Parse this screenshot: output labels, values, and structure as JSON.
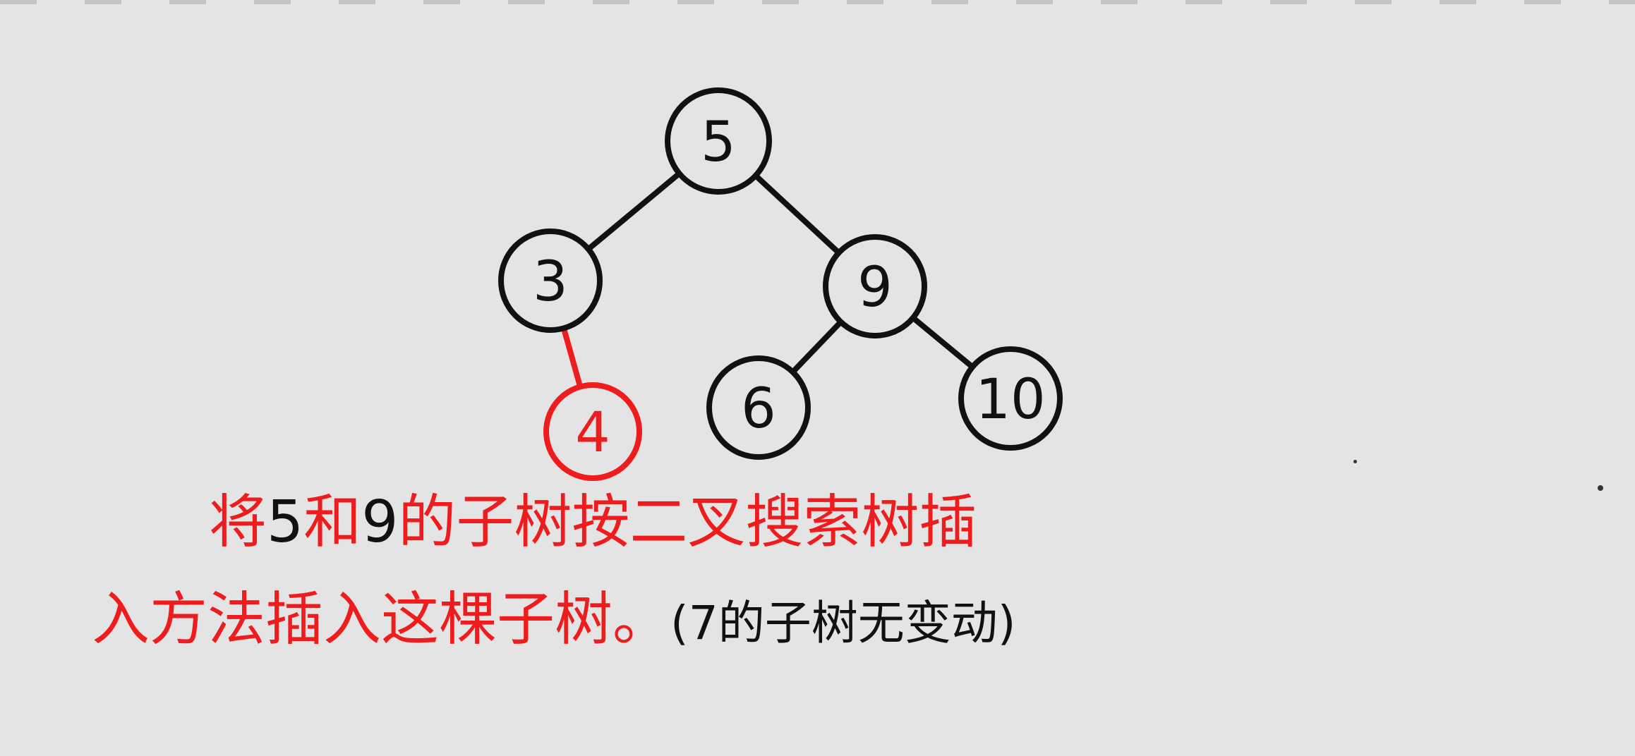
{
  "tree": {
    "nodes": [
      {
        "id": "n5",
        "label": "5",
        "color": "#111111"
      },
      {
        "id": "n3",
        "label": "3",
        "color": "#111111"
      },
      {
        "id": "n9",
        "label": "9",
        "color": "#111111"
      },
      {
        "id": "n4",
        "label": "4",
        "color": "#ee1c1c"
      },
      {
        "id": "n6",
        "label": "6",
        "color": "#111111"
      },
      {
        "id": "n10",
        "label": "10",
        "color": "#111111"
      }
    ],
    "edges": [
      {
        "from": "n5",
        "to": "n3",
        "color": "#111111"
      },
      {
        "from": "n5",
        "to": "n9",
        "color": "#111111"
      },
      {
        "from": "n3",
        "to": "n4",
        "color": "#ee1c1c"
      },
      {
        "from": "n9",
        "to": "n6",
        "color": "#111111"
      },
      {
        "from": "n9",
        "to": "n10",
        "color": "#111111"
      }
    ]
  },
  "caption": {
    "line1": [
      {
        "text": "将",
        "color": "red"
      },
      {
        "text": "5",
        "color": "black"
      },
      {
        "text": "和",
        "color": "red"
      },
      {
        "text": "9",
        "color": "black"
      },
      {
        "text": "的子树按二叉搜索树插",
        "color": "red"
      }
    ],
    "line2": [
      {
        "text": "入方法插入这棵子树。",
        "color": "red"
      },
      {
        "text": "(7的子树无变动)",
        "color": "black"
      }
    ]
  },
  "colors": {
    "ink": "#111111",
    "highlight": "#ee1c1c",
    "paper": "#e4e4e4"
  }
}
